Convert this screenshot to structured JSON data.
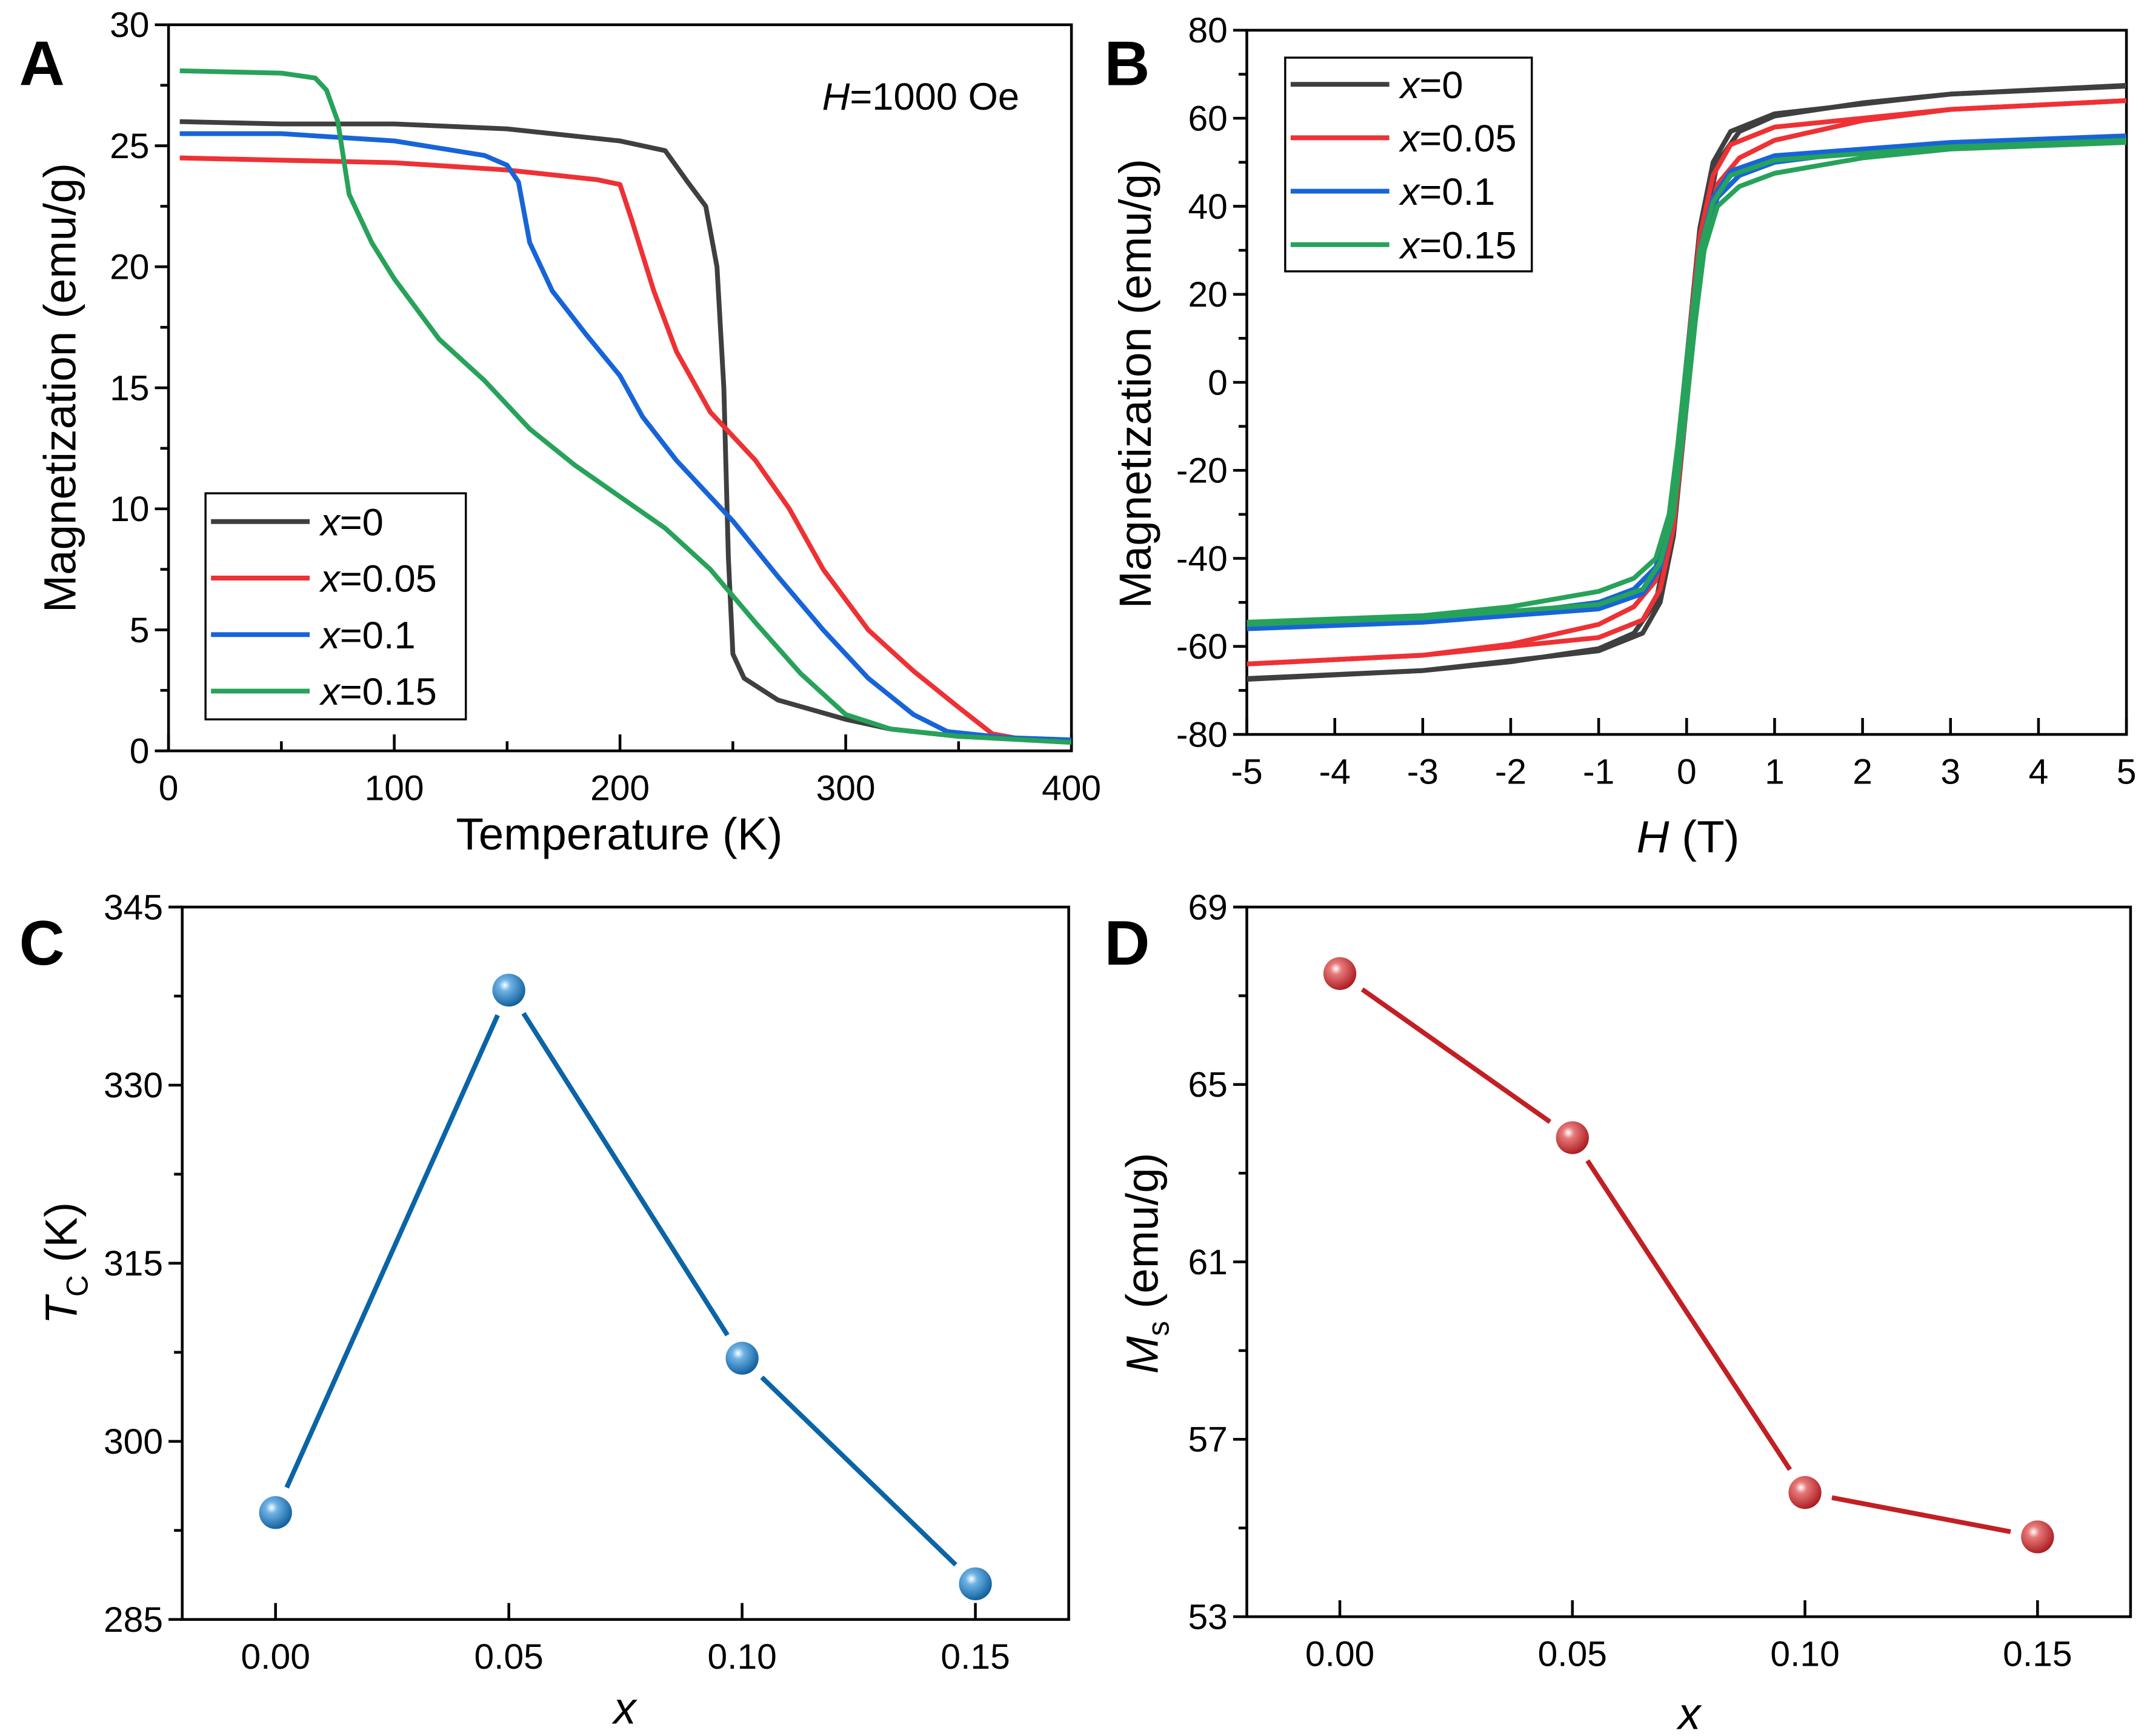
{
  "chart_data": [
    {
      "panel_label": "A",
      "type": "line",
      "xlabel": "Temperature (K)",
      "ylabel": "Magnetization (emu/g)",
      "xlim": [
        0,
        400
      ],
      "ylim": [
        0,
        30
      ],
      "xticks": [
        "0",
        "100",
        "200",
        "300",
        "400"
      ],
      "yticks": [
        "0",
        "5",
        "10",
        "15",
        "20",
        "25",
        "30"
      ],
      "annotation": {
        "var": "H",
        "text": "=1000 Oe"
      },
      "legend_placement": "bottom-left",
      "grid": false,
      "series": [
        {
          "name": {
            "var": "x",
            "value": "=0"
          },
          "color": "#3f3f3f",
          "points": [
            [
              5,
              26
            ],
            [
              50,
              25.9
            ],
            [
              100,
              25.9
            ],
            [
              150,
              25.7
            ],
            [
              200,
              25.2
            ],
            [
              220,
              24.8
            ],
            [
              230,
              23.5
            ],
            [
              238,
              22.5
            ],
            [
              243,
              20
            ],
            [
              246,
              15
            ],
            [
              248,
              8
            ],
            [
              250,
              4
            ],
            [
              255,
              3
            ],
            [
              270,
              2.1
            ],
            [
              300,
              1.3
            ],
            [
              320,
              0.9
            ],
            [
              350,
              0.6
            ],
            [
              400,
              0.4
            ]
          ]
        },
        {
          "name": {
            "var": "x",
            "value": "=0.05"
          },
          "color": "#ee3134",
          "points": [
            [
              5,
              24.5
            ],
            [
              100,
              24.3
            ],
            [
              150,
              24
            ],
            [
              190,
              23.6
            ],
            [
              200,
              23.4
            ],
            [
              205,
              22
            ],
            [
              215,
              19
            ],
            [
              225,
              16.5
            ],
            [
              240,
              14
            ],
            [
              260,
              12
            ],
            [
              275,
              10
            ],
            [
              290,
              7.5
            ],
            [
              310,
              5
            ],
            [
              330,
              3.3
            ],
            [
              350,
              1.8
            ],
            [
              365,
              0.7
            ],
            [
              380,
              0.45
            ],
            [
              400,
              0.35
            ]
          ]
        },
        {
          "name": {
            "var": "x",
            "value": "=0.1"
          },
          "color": "#1764d8",
          "points": [
            [
              5,
              25.5
            ],
            [
              50,
              25.5
            ],
            [
              100,
              25.2
            ],
            [
              140,
              24.6
            ],
            [
              150,
              24.2
            ],
            [
              155,
              23.5
            ],
            [
              160,
              21
            ],
            [
              170,
              19
            ],
            [
              185,
              17.2
            ],
            [
              200,
              15.5
            ],
            [
              210,
              13.8
            ],
            [
              225,
              12
            ],
            [
              250,
              9.5
            ],
            [
              270,
              7.2
            ],
            [
              290,
              5
            ],
            [
              310,
              3
            ],
            [
              330,
              1.5
            ],
            [
              345,
              0.8
            ],
            [
              370,
              0.55
            ],
            [
              400,
              0.45
            ]
          ]
        },
        {
          "name": {
            "var": "x",
            "value": "=0.15"
          },
          "color": "#27a25a",
          "points": [
            [
              5,
              28.1
            ],
            [
              50,
              28
            ],
            [
              65,
              27.8
            ],
            [
              70,
              27.3
            ],
            [
              75,
              26
            ],
            [
              80,
              23
            ],
            [
              90,
              21
            ],
            [
              100,
              19.5
            ],
            [
              120,
              17
            ],
            [
              140,
              15.3
            ],
            [
              160,
              13.3
            ],
            [
              180,
              11.8
            ],
            [
              200,
              10.5
            ],
            [
              220,
              9.2
            ],
            [
              240,
              7.5
            ],
            [
              260,
              5.3
            ],
            [
              280,
              3.2
            ],
            [
              300,
              1.5
            ],
            [
              320,
              0.9
            ],
            [
              350,
              0.6
            ],
            [
              400,
              0.35
            ]
          ]
        }
      ]
    },
    {
      "panel_label": "B",
      "type": "line",
      "xlabel": {
        "var": "H",
        "text": " (T)"
      },
      "ylabel": "Magnetization (emu/g)",
      "xlim": [
        -5,
        5
      ],
      "ylim": [
        -80,
        80
      ],
      "xticks": [
        "-5",
        "-4",
        "-3",
        "-2",
        "-1",
        "0",
        "1",
        "2",
        "3",
        "4",
        "5"
      ],
      "yticks": [
        "-80",
        "-60",
        "-40",
        "-20",
        "0",
        "20",
        "40",
        "60",
        "80"
      ],
      "legend_placement": "top-left",
      "grid": false,
      "loop_symmetric": true,
      "series": [
        {
          "name": {
            "var": "x",
            "value": "=0"
          },
          "color": "#3f3f3f",
          "points": [
            [
              -5,
              -67.5
            ],
            [
              -3,
              -65.5
            ],
            [
              -1,
              -61
            ],
            [
              -0.5,
              -57
            ],
            [
              -0.3,
              -50
            ],
            [
              -0.15,
              -35
            ],
            [
              0,
              -5
            ],
            [
              0.1,
              15
            ],
            [
              0.2,
              35
            ],
            [
              0.35,
              50
            ],
            [
              0.6,
              57
            ],
            [
              1,
              60.5
            ],
            [
              2,
              63.5
            ],
            [
              3,
              65.5
            ],
            [
              5,
              67.3
            ]
          ]
        },
        {
          "name": {
            "var": "x",
            "value": "=0.05"
          },
          "color": "#ee3134",
          "points": [
            [
              -5,
              -64
            ],
            [
              -3,
              -62
            ],
            [
              -1,
              -58
            ],
            [
              -0.5,
              -54
            ],
            [
              -0.3,
              -47
            ],
            [
              -0.15,
              -33
            ],
            [
              0,
              -5
            ],
            [
              0.1,
              15
            ],
            [
              0.2,
              33
            ],
            [
              0.35,
              45
            ],
            [
              0.6,
              51
            ],
            [
              1,
              55
            ],
            [
              2,
              59.5
            ],
            [
              3,
              62
            ],
            [
              5,
              64
            ]
          ]
        },
        {
          "name": {
            "var": "x",
            "value": "=0.1"
          },
          "color": "#1764d8",
          "points": [
            [
              -5,
              -56
            ],
            [
              -3,
              -54.5
            ],
            [
              -1,
              -51.5
            ],
            [
              -0.5,
              -48
            ],
            [
              -0.3,
              -42
            ],
            [
              -0.15,
              -30
            ],
            [
              0,
              -5
            ],
            [
              0.1,
              15
            ],
            [
              0.2,
              32
            ],
            [
              0.35,
              42
            ],
            [
              0.6,
              47
            ],
            [
              1,
              50
            ],
            [
              2,
              52.5
            ],
            [
              3,
              54
            ],
            [
              5,
              55.5
            ]
          ]
        },
        {
          "name": {
            "var": "x",
            "value": "=0.15"
          },
          "color": "#27a25a",
          "points": [
            [
              -5,
              -55
            ],
            [
              -3,
              -53.5
            ],
            [
              -1,
              -50.5
            ],
            [
              -0.5,
              -47
            ],
            [
              -0.3,
              -41
            ],
            [
              -0.15,
              -30
            ],
            [
              0,
              -5
            ],
            [
              0.1,
              14
            ],
            [
              0.2,
              30
            ],
            [
              0.35,
              40
            ],
            [
              0.6,
              44.5
            ],
            [
              1,
              47.5
            ],
            [
              2,
              51
            ],
            [
              3,
              53
            ],
            [
              5,
              54.5
            ]
          ]
        }
      ]
    },
    {
      "panel_label": "C",
      "type": "line",
      "xlabel": "x",
      "ylabel": {
        "main": "T",
        "sub": "C",
        "unit": " (K)"
      },
      "xlim": [
        -0.02,
        0.17
      ],
      "ylim": [
        285,
        345
      ],
      "xticks": [
        "0.00",
        "0.05",
        "0.10",
        "0.15"
      ],
      "yticks": [
        "285",
        "300",
        "315",
        "330",
        "345"
      ],
      "grid": false,
      "series": [
        {
          "color": "#0a64a6",
          "x": [
            0.0,
            0.05,
            0.1,
            0.15
          ],
          "y": [
            294,
            338,
            307,
            288
          ]
        }
      ]
    },
    {
      "panel_label": "D",
      "type": "line",
      "xlabel": "x",
      "ylabel": {
        "main": "M",
        "sub": "s",
        "unit": " (emu/g)"
      },
      "xlim": [
        -0.02,
        0.17
      ],
      "ylim": [
        53,
        69
      ],
      "xticks": [
        "0.00",
        "0.05",
        "0.10",
        "0.15"
      ],
      "yticks": [
        "53",
        "57",
        "61",
        "65",
        "69"
      ],
      "grid": false,
      "series": [
        {
          "color": "#c21f24",
          "x": [
            0.0,
            0.05,
            0.1,
            0.15
          ],
          "y": [
            67.5,
            63.8,
            55.8,
            54.8
          ]
        }
      ]
    }
  ]
}
